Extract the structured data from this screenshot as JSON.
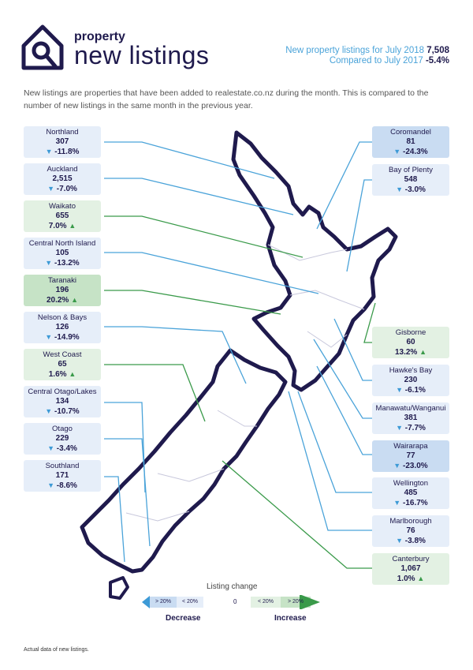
{
  "header": {
    "brand_small": "property",
    "brand_big": "new listings",
    "summary_line1_label": "New property listings for July 2018",
    "summary_line1_value": "7,508",
    "summary_line2_label": "Compared to July 2017",
    "summary_line2_value": "-5.4%"
  },
  "intro": "New listings are properties that have been added to realestate.co.nz during the month. This is compared to the number of new listings in the same month in the previous year.",
  "regions": [
    {
      "name": "Northland",
      "value": "307",
      "change": "-11.8%",
      "dir": "down"
    },
    {
      "name": "Auckland",
      "value": "2,515",
      "change": "-7.0%",
      "dir": "down"
    },
    {
      "name": "Waikato",
      "value": "655",
      "change": "7.0%",
      "dir": "up"
    },
    {
      "name": "Central North Island",
      "value": "105",
      "change": "-13.2%",
      "dir": "down"
    },
    {
      "name": "Taranaki",
      "value": "196",
      "change": "20.2%",
      "dir": "up"
    },
    {
      "name": "Nelson & Bays",
      "value": "126",
      "change": "-14.9%",
      "dir": "down"
    },
    {
      "name": "West Coast",
      "value": "65",
      "change": "1.6%",
      "dir": "up"
    },
    {
      "name": "Central Otago/Lakes",
      "value": "134",
      "change": "-10.7%",
      "dir": "down"
    },
    {
      "name": "Otago",
      "value": "229",
      "change": "-3.4%",
      "dir": "down"
    },
    {
      "name": "Southland",
      "value": "171",
      "change": "-8.6%",
      "dir": "down"
    },
    {
      "name": "Coromandel",
      "value": "81",
      "change": "-24.3%",
      "dir": "down"
    },
    {
      "name": "Bay of Plenty",
      "value": "548",
      "change": "-3.0%",
      "dir": "down"
    },
    {
      "name": "Gisborne",
      "value": "60",
      "change": "13.2%",
      "dir": "up"
    },
    {
      "name": "Hawke's Bay",
      "value": "230",
      "change": "-6.1%",
      "dir": "down"
    },
    {
      "name": "Manawatu/Wanganui",
      "value": "381",
      "change": "-7.7%",
      "dir": "down"
    },
    {
      "name": "Wairarapa",
      "value": "77",
      "change": "-23.0%",
      "dir": "down"
    },
    {
      "name": "Wellington",
      "value": "485",
      "change": "-16.7%",
      "dir": "down"
    },
    {
      "name": "Marlborough",
      "value": "76",
      "change": "-3.8%",
      "dir": "down"
    },
    {
      "name": "Canterbury",
      "value": "1,067",
      "change": "1.0%",
      "dir": "up"
    }
  ],
  "legend": {
    "title": "Listing change",
    "cells": [
      "> 20%",
      "< 20%",
      "0",
      "< 20%",
      "> 20%"
    ],
    "decrease_label": "Decrease",
    "increase_label": "Increase"
  },
  "footnote": "Actual data of new listings.",
  "colors": {
    "navy": "#1f1a4d",
    "decrease_light": "#e6eef9",
    "decrease_strong": "#c9dcf2",
    "increase_light": "#e3f1e3",
    "increase_strong": "#c6e3c6",
    "line_blue": "#4aa3d9",
    "line_green": "#3a9a4a"
  }
}
